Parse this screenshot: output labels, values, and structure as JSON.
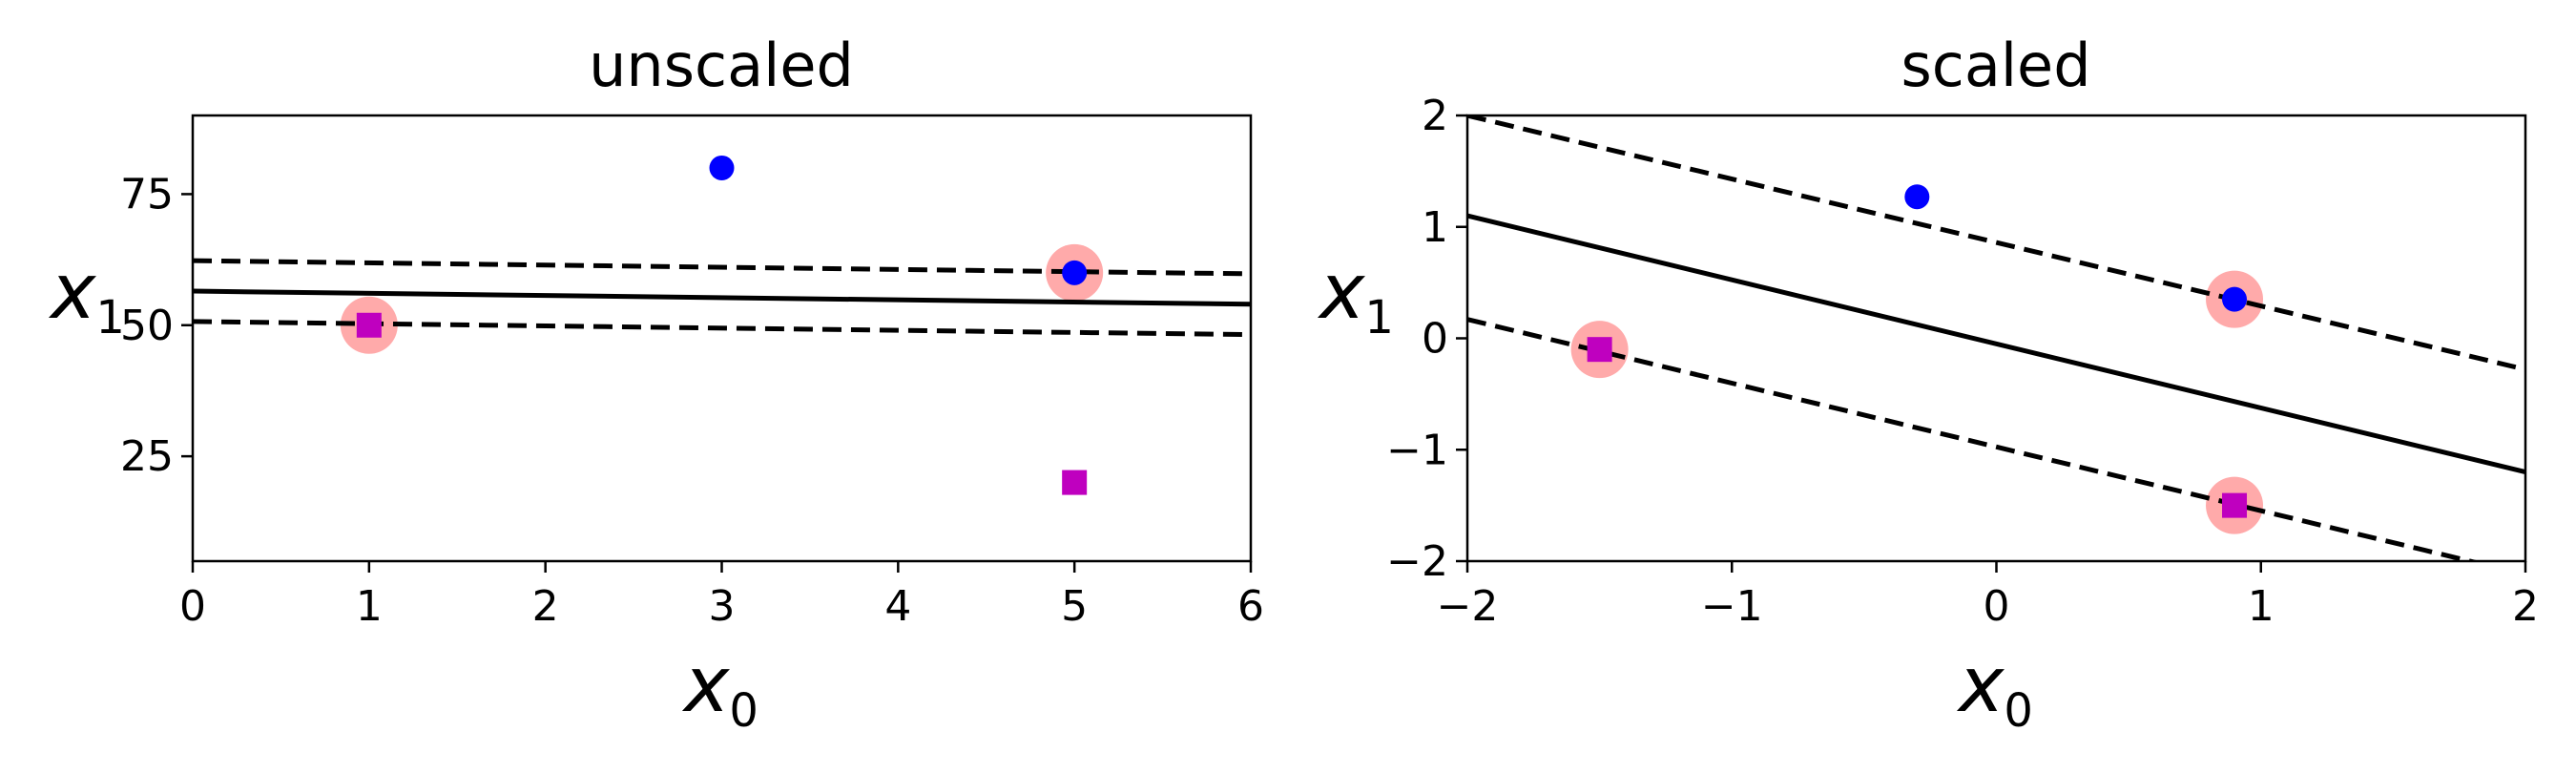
{
  "colors": {
    "positive": "#0000ff",
    "negative": "#bf00bf",
    "support_vector_highlight": "#ffaaaa",
    "boundary": "#000000"
  },
  "chart_data": [
    {
      "type": "scatter",
      "title": "unscaled",
      "xlabel": "x0",
      "ylabel": "x1",
      "xlim": [
        0,
        6
      ],
      "ylim": [
        5,
        90
      ],
      "xticks": [
        0,
        1,
        2,
        3,
        4,
        5,
        6
      ],
      "yticks": [
        25,
        50,
        75
      ],
      "grid": false,
      "series": [
        {
          "marker": "circle",
          "color": "#0000ff",
          "points": [
            [
              3,
              80
            ],
            [
              5,
              60
            ]
          ]
        },
        {
          "marker": "square",
          "color": "#bf00bf",
          "points": [
            [
              1,
              50
            ],
            [
              5,
              20
            ]
          ]
        }
      ],
      "support_vectors": [
        [
          1,
          50
        ],
        [
          5,
          60
        ]
      ],
      "decision_boundary": [
        [
          0,
          56.5
        ],
        [
          6,
          54.0
        ]
      ],
      "margin_upper": [
        [
          0,
          62.3
        ],
        [
          6,
          59.8
        ]
      ],
      "margin_lower": [
        [
          0,
          50.7
        ],
        [
          6,
          48.2
        ]
      ]
    },
    {
      "type": "scatter",
      "title": "scaled",
      "xlabel": "x0",
      "ylabel": "x1",
      "xlim": [
        -2,
        2
      ],
      "ylim": [
        -2,
        2
      ],
      "xticks": [
        -2,
        -1,
        0,
        1,
        2
      ],
      "xtick_labels": [
        "−2",
        "−1",
        "0",
        "1",
        "2"
      ],
      "yticks": [
        -2,
        -1,
        0,
        1,
        2
      ],
      "ytick_labels": [
        "−2",
        "−1",
        "0",
        "1",
        "2"
      ],
      "grid": false,
      "series": [
        {
          "marker": "circle",
          "color": "#0000ff",
          "points": [
            [
              -0.3,
              1.27
            ],
            [
              0.9,
              0.35
            ]
          ]
        },
        {
          "marker": "square",
          "color": "#bf00bf",
          "points": [
            [
              -1.5,
              -0.1
            ],
            [
              0.9,
              -1.5
            ]
          ]
        }
      ],
      "support_vectors": [
        [
          -1.5,
          -0.1
        ],
        [
          0.9,
          0.35
        ],
        [
          0.9,
          -1.5
        ]
      ],
      "decision_boundary": [
        [
          -2,
          1.1
        ],
        [
          2,
          -1.2
        ]
      ],
      "margin_upper": [
        [
          -2,
          2.0
        ],
        [
          2,
          -0.28
        ]
      ],
      "margin_lower": [
        [
          -2,
          0.17
        ],
        [
          2,
          -2.12
        ]
      ]
    }
  ]
}
